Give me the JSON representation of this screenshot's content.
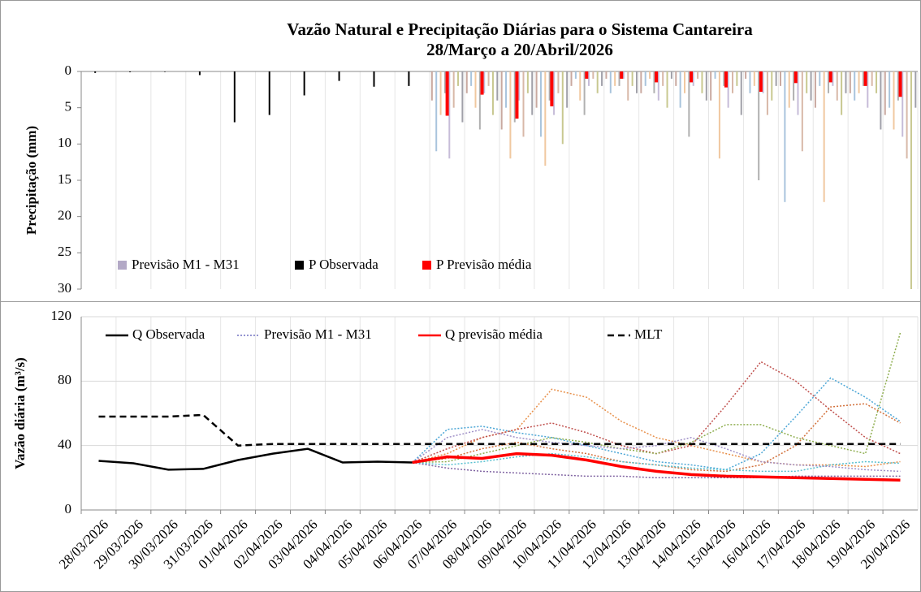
{
  "chart_data": [
    {
      "type": "bar",
      "title": "Vazão Natural e Precipitação Diárias para o Sistema Cantareira",
      "subtitle": "28/Março a 20/Abril/2026",
      "ylabel": "Precipitação (mm)",
      "ylim": [
        0,
        30
      ],
      "yticks": [
        0,
        5,
        10,
        15,
        20,
        25,
        30
      ],
      "inverted": true,
      "grid": true,
      "ensemble": {
        "name": "Previsão M1 - M31",
        "color": "#b3a9c6",
        "members": [
          {
            "color": "#c9a9a0",
            "values": [
              null,
              null,
              null,
              null,
              null,
              null,
              null,
              null,
              null,
              null,
              4,
              3,
              8,
              5,
              2,
              1,
              3,
              2,
              4,
              1,
              2,
              5,
              3,
              6
            ]
          },
          {
            "color": "#a9c4dc",
            "values": [
              null,
              null,
              null,
              null,
              null,
              null,
              null,
              null,
              null,
              null,
              11,
              2,
              5,
              9,
              1,
              3,
              2,
              5,
              1,
              3,
              18,
              2,
              4,
              5
            ]
          },
          {
            "color": "#f0c8a0",
            "values": [
              null,
              null,
              null,
              null,
              null,
              null,
              null,
              null,
              null,
              null,
              6,
              5,
              12,
              13,
              4,
              2,
              1,
              3,
              12,
              2,
              5,
              18,
              3,
              8
            ]
          },
          {
            "color": "#b0b0b0",
            "values": [
              null,
              null,
              null,
              null,
              null,
              null,
              null,
              null,
              null,
              null,
              3,
              8,
              7,
              4,
              6,
              2,
              3,
              9,
              2,
              15,
              4,
              3,
              2,
              4
            ]
          },
          {
            "color": "#c6bcd8",
            "values": [
              null,
              null,
              null,
              null,
              null,
              null,
              null,
              null,
              null,
              null,
              12,
              3,
              4,
              6,
              2,
              1,
              4,
              2,
              5,
              3,
              6,
              2,
              5,
              9
            ]
          },
          {
            "color": "#d8b8a8",
            "values": [
              null,
              null,
              null,
              null,
              null,
              null,
              null,
              null,
              null,
              null,
              5,
              2,
              9,
              3,
              1,
              4,
              2,
              1,
              3,
              6,
              11,
              4,
              2,
              12
            ]
          },
          {
            "color": "#c8c890",
            "values": [
              null,
              null,
              null,
              null,
              null,
              null,
              null,
              null,
              null,
              null,
              2,
              6,
              3,
              10,
              3,
              2,
              5,
              3,
              2,
              4,
              3,
              6,
              3,
              30
            ]
          },
          {
            "color": "#a0a0a8",
            "values": [
              null,
              null,
              null,
              null,
              null,
              null,
              null,
              null,
              null,
              null,
              7,
              4,
              6,
              5,
              2,
              3,
              1,
              4,
              6,
              2,
              4,
              3,
              8,
              5
            ]
          }
        ]
      },
      "series": [
        {
          "name": "P Observada",
          "color": "#000000",
          "values": [
            0.2,
            0.1,
            0,
            0.5,
            7,
            6,
            3.3,
            1.3,
            2.1,
            2.0,
            null,
            null,
            null,
            null,
            null,
            null,
            null,
            null,
            null,
            null,
            null,
            null,
            null,
            null
          ]
        },
        {
          "name": "P Previsão média",
          "color": "#ff0000",
          "values": [
            null,
            null,
            null,
            null,
            null,
            null,
            null,
            null,
            null,
            null,
            6.1,
            3.2,
            6.5,
            4.8,
            1.0,
            1.0,
            1.5,
            1.5,
            2.2,
            2.8,
            1.6,
            1.5,
            2.0,
            3.5
          ]
        }
      ]
    },
    {
      "type": "line",
      "ylabel": "Vazão diária (m³/s)",
      "ylim": [
        0,
        120
      ],
      "yticks": [
        0,
        40,
        80,
        120
      ],
      "grid": true,
      "categories": [
        "28/03/2026",
        "29/03/2026",
        "30/03/2026",
        "31/03/2026",
        "01/04/2026",
        "02/04/2026",
        "03/04/2026",
        "04/04/2026",
        "05/04/2026",
        "06/04/2026",
        "07/04/2026",
        "08/04/2026",
        "09/04/2026",
        "10/04/2026",
        "11/04/2026",
        "12/04/2026",
        "13/04/2026",
        "14/04/2026",
        "15/04/2026",
        "16/04/2026",
        "17/04/2026",
        "18/04/2026",
        "19/04/2026",
        "20/04/2026"
      ],
      "series": [
        {
          "name": "Q Observada",
          "color": "#000000",
          "dash": "solid",
          "values": [
            30.5,
            29,
            25,
            25.5,
            31,
            35,
            38,
            29.5,
            30,
            29.5,
            null,
            null,
            null,
            null,
            null,
            null,
            null,
            null,
            null,
            null,
            null,
            null,
            null,
            null
          ]
        },
        {
          "name": "Previsão M1 - M31",
          "color": "#7070c0",
          "dash": "dotted",
          "values": null
        },
        {
          "name": "Q previsão média",
          "color": "#ff0000",
          "dash": "solid",
          "values": [
            null,
            null,
            null,
            null,
            null,
            null,
            null,
            null,
            null,
            29.5,
            33,
            32,
            35,
            34,
            31,
            27,
            24,
            22,
            21,
            20.5,
            20,
            19.5,
            19,
            18.5
          ]
        },
        {
          "name": "MLT",
          "color": "#000000",
          "dash": "dashed",
          "values": [
            58,
            58,
            58,
            59,
            40,
            41,
            41,
            41,
            41,
            41,
            41,
            41,
            41,
            41,
            41,
            41,
            41,
            41,
            41,
            41,
            41,
            41,
            41,
            41
          ]
        }
      ],
      "ensemble_members": [
        {
          "color": "#e8904a",
          "values": [
            null,
            null,
            null,
            null,
            null,
            null,
            null,
            null,
            null,
            29.5,
            35,
            45,
            50,
            75,
            70,
            55,
            45,
            40,
            35,
            30,
            28,
            28,
            27,
            30
          ]
        },
        {
          "color": "#4ba6d6",
          "values": [
            null,
            null,
            null,
            null,
            null,
            null,
            null,
            null,
            null,
            29.5,
            50,
            52,
            48,
            45,
            40,
            35,
            30,
            28,
            25,
            35,
            58,
            82,
            70,
            55
          ]
        },
        {
          "color": "#c0504d",
          "values": [
            null,
            null,
            null,
            null,
            null,
            null,
            null,
            null,
            null,
            29.5,
            38,
            45,
            50,
            54,
            48,
            40,
            35,
            40,
            65,
            92,
            80,
            62,
            45,
            35
          ]
        },
        {
          "color": "#8fae50",
          "values": [
            null,
            null,
            null,
            null,
            null,
            null,
            null,
            null,
            null,
            29.5,
            30,
            35,
            40,
            45,
            42,
            38,
            35,
            42,
            53,
            53,
            45,
            40,
            35,
            110
          ]
        },
        {
          "color": "#8064a2",
          "values": [
            null,
            null,
            null,
            null,
            null,
            null,
            null,
            null,
            null,
            29.5,
            26,
            24,
            23,
            22,
            21,
            21,
            20,
            20,
            20,
            20,
            21,
            21,
            21,
            21
          ]
        },
        {
          "color": "#d2703a",
          "values": [
            null,
            null,
            null,
            null,
            null,
            null,
            null,
            null,
            null,
            29.5,
            32,
            38,
            42,
            38,
            35,
            30,
            28,
            25,
            24,
            28,
            40,
            64,
            66,
            54
          ]
        },
        {
          "color": "#58c0d0",
          "values": [
            null,
            null,
            null,
            null,
            null,
            null,
            null,
            null,
            null,
            29.5,
            28,
            30,
            33,
            35,
            33,
            30,
            28,
            26,
            25,
            24,
            24,
            28,
            30,
            29
          ]
        },
        {
          "color": "#a090c8",
          "values": [
            null,
            null,
            null,
            null,
            null,
            null,
            null,
            null,
            null,
            29.5,
            45,
            50,
            45,
            42,
            40,
            38,
            40,
            45,
            38,
            30,
            28,
            27,
            25,
            24
          ]
        }
      ]
    }
  ]
}
